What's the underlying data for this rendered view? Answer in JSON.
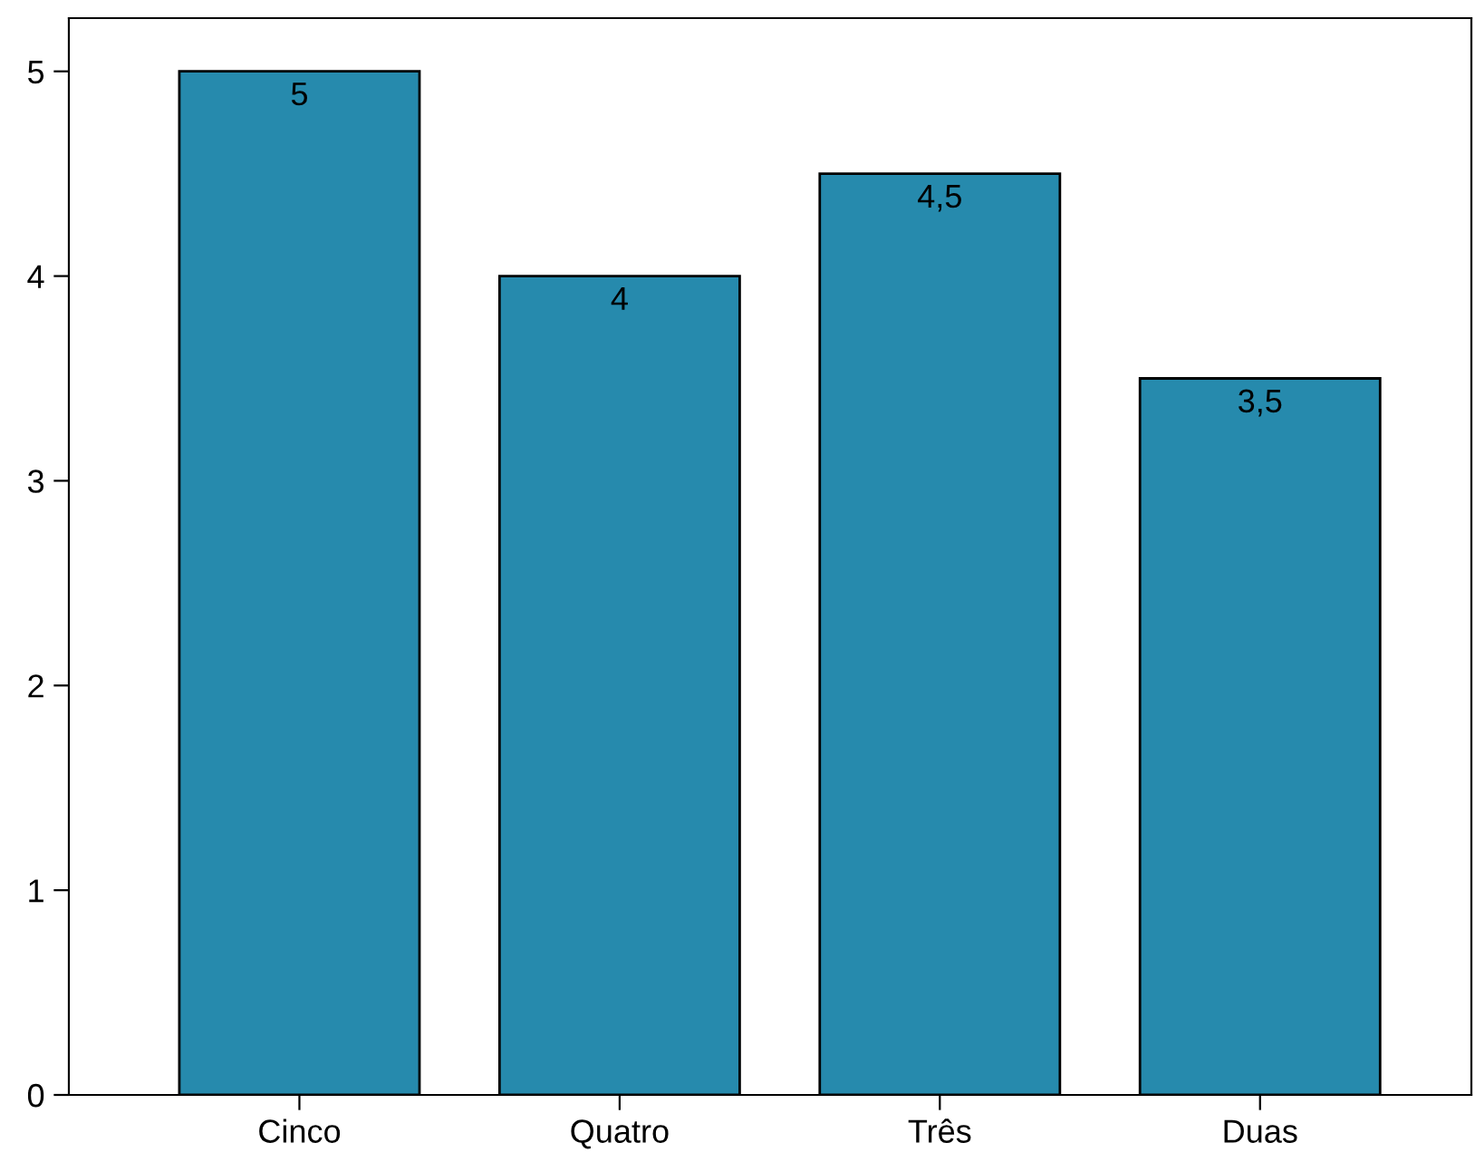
{
  "chart_data": {
    "type": "bar",
    "categories": [
      "Cinco",
      "Quatro",
      "Três",
      "Duas"
    ],
    "values": [
      5,
      4,
      4.5,
      3.5
    ],
    "value_labels": [
      "5",
      "4",
      "4,5",
      "3,5"
    ],
    "color": "#268aad",
    "ylim": [
      0,
      5.26
    ],
    "yticks": [
      0,
      1,
      2,
      3,
      4,
      5
    ],
    "grid": false,
    "legend": false
  }
}
